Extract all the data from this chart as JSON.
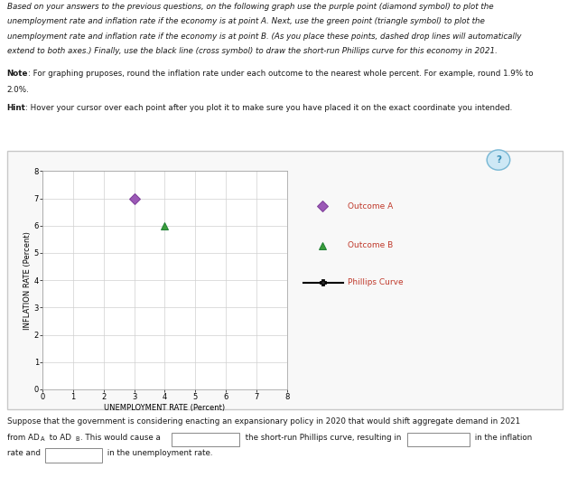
{
  "instruction_text_line1": "Based on your answers to the previous questions, on the following graph use the purple point (diamond symbol) to plot the",
  "instruction_text_line2": "unemployment rate and inflation rate if the economy is at point A. Next, use the green point (triangle symbol) to plot the",
  "instruction_text_line3": "unemployment rate and inflation rate if the economy is at point B. (As you place these points, dashed drop lines will automatically",
  "instruction_text_line4": "extend to both axes.) Finally, use the black line (cross symbol) to draw the short-run Phillips curve for this economy in 2021.",
  "note_bold": "Note",
  "note_rest": ": For graphing pruposes, round the inflation rate under each outcome to the nearest whole percent. For example, round 1.9% to",
  "note_line2": "2.0%.",
  "hint_bold": "Hint",
  "hint_rest": ": Hover your cursor over each point after you plot it to make sure you have placed it on the exact coordinate you intended.",
  "xlabel": "UNEMPLOYMENT RATE (Percent)",
  "ylabel": "INFLATION RATE (Percent)",
  "xlim": [
    0,
    8
  ],
  "ylim": [
    0,
    8
  ],
  "xticks": [
    0,
    1,
    2,
    3,
    4,
    5,
    6,
    7,
    8
  ],
  "yticks": [
    0,
    1,
    2,
    3,
    4,
    5,
    6,
    7,
    8
  ],
  "outcome_a_x": 3,
  "outcome_a_y": 7,
  "outcome_a_color": "#9b59b6",
  "outcome_a_label": "Outcome A",
  "outcome_b_x": 4,
  "outcome_b_y": 6,
  "outcome_b_color": "#3a9c3a",
  "outcome_b_label": "Outcome B",
  "phillips_label": "Phillips Curve",
  "phillips_label_color": "#c0392b",
  "legend_label_color": "#c0392b",
  "bg_color": "#ffffff",
  "grid_color": "#d0d0d0",
  "border_color": "#c8c8c8",
  "text_color": "#1a1a1a",
  "instruction_fontsize": 6.3,
  "axis_fontsize": 6.0,
  "tick_fontsize": 6.0,
  "legend_fontsize": 6.5,
  "bottom_fontsize": 6.3
}
